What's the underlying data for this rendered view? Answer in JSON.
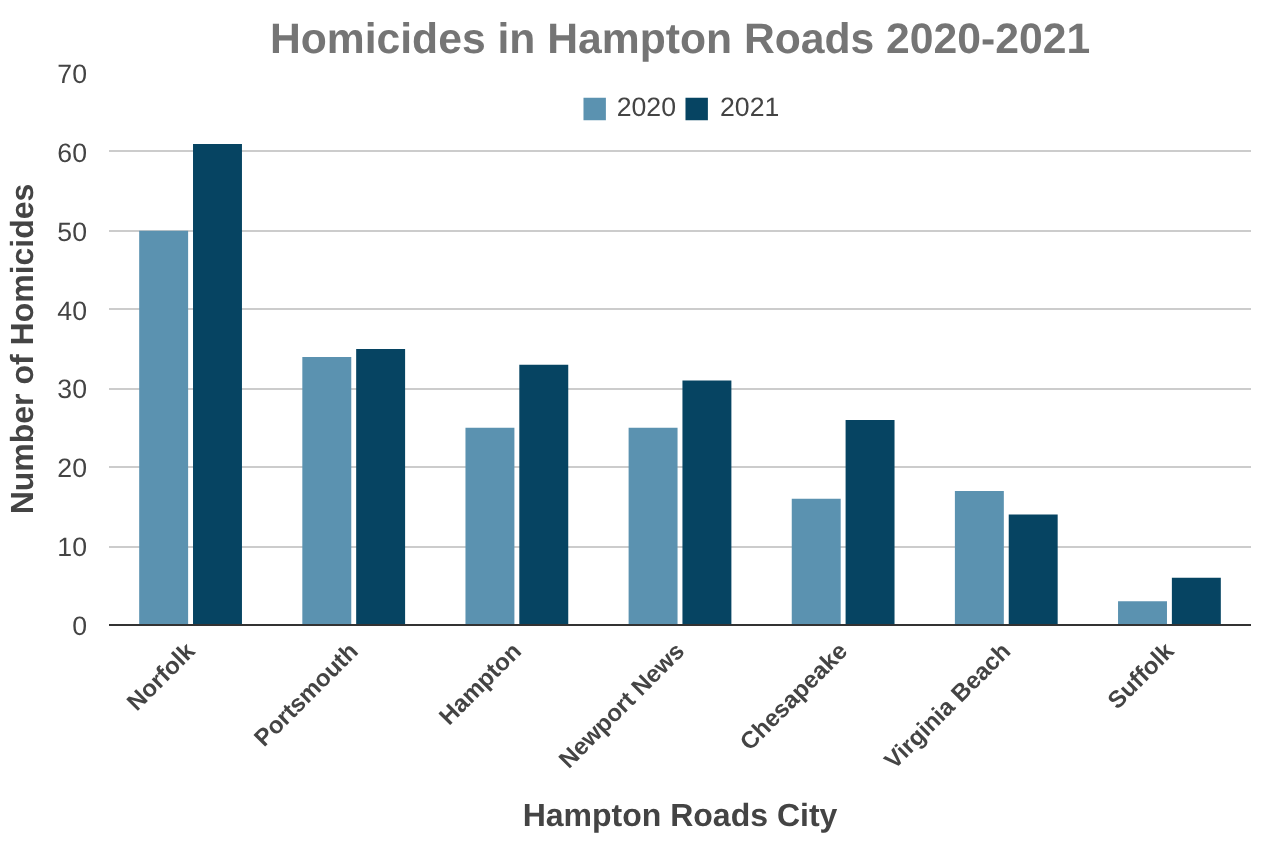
{
  "chart_data": {
    "type": "bar",
    "title": "Homicides in Hampton Roads 2020-2021",
    "xlabel": "Hampton Roads City",
    "ylabel": "Number of Homicides",
    "categories": [
      "Norfolk",
      "Portsmouth",
      "Hampton",
      "Newport News",
      "Chesapeake",
      "Virginia Beach",
      "Suffolk"
    ],
    "series": [
      {
        "name": "2020",
        "color": "#5b92b0",
        "values": [
          50,
          34,
          25,
          25,
          16,
          17,
          3
        ]
      },
      {
        "name": "2021",
        "color": "#064462",
        "values": [
          61,
          35,
          33,
          31,
          26,
          14,
          6
        ]
      }
    ],
    "ylim": [
      0,
      70
    ],
    "yticks": [
      0,
      10,
      20,
      30,
      40,
      50,
      60,
      70
    ],
    "grid": "y",
    "legend": "top"
  }
}
